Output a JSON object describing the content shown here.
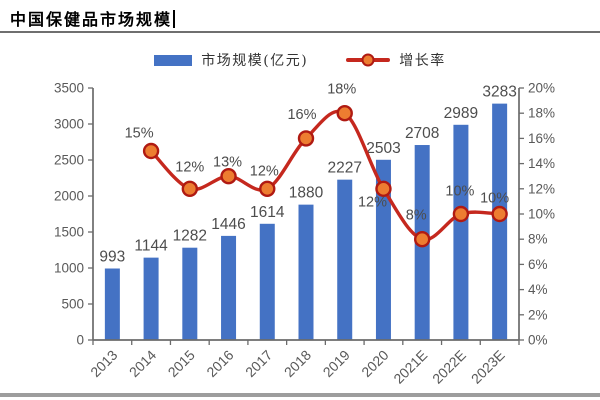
{
  "title": {
    "text": "中国保健品市场规模"
  },
  "legend": {
    "items": [
      {
        "label": "市场规模(亿元)",
        "marker": "bar",
        "color": "#4472C4"
      },
      {
        "label": "增长率",
        "marker": "line",
        "color": "#C5281E",
        "marker_fill": "#ED7D31",
        "marker_stroke": "#B01A12"
      }
    ]
  },
  "chart_data": {
    "type": "bar",
    "subtype": "bar+line combo, dual axis",
    "title": "中国保健品市场规模",
    "categories": [
      "2013",
      "2014",
      "2015",
      "2016",
      "2017",
      "2018",
      "2019",
      "2020",
      "2021E",
      "2022E",
      "2023E"
    ],
    "series": [
      {
        "name": "市场规模(亿元)",
        "type": "bar",
        "axis": "left",
        "color": "#4472C4",
        "values": [
          993,
          1144,
          1282,
          1446,
          1614,
          1880,
          2227,
          2503,
          2708,
          2989,
          3283
        ],
        "value_labels": [
          "993",
          "1144",
          "1282",
          "1446",
          "1614",
          "1880",
          "2227",
          "2503",
          "2708",
          "2989",
          "3283"
        ]
      },
      {
        "name": "增长率",
        "type": "line",
        "axis": "right",
        "color": "#C5281E",
        "marker_fill": "#ED7D31",
        "marker_stroke": "#B01A12",
        "smooth": true,
        "values": [
          null,
          15,
          12,
          13,
          12,
          16,
          18,
          12,
          8,
          10,
          10
        ],
        "value_labels": [
          null,
          "15%",
          "12%",
          "13%",
          "12%",
          "16%",
          "18%",
          "12%",
          "8%",
          "10%",
          "10%"
        ],
        "label_offsets": [
          null,
          [
            -12,
            -18
          ],
          [
            0,
            -22
          ],
          [
            -1,
            -14
          ],
          [
            -3,
            -18
          ],
          [
            -4,
            -24
          ],
          [
            -3,
            -24
          ],
          [
            -11,
            13
          ],
          [
            -6,
            -24
          ],
          [
            -1,
            -23
          ],
          [
            -5,
            -16
          ]
        ]
      }
    ],
    "left_axis": {
      "min": 0,
      "max": 3500,
      "step": 500,
      "ticks": [
        "0",
        "500",
        "1000",
        "1500",
        "2000",
        "2500",
        "3000",
        "3500"
      ]
    },
    "right_axis": {
      "min": 0,
      "max": 20,
      "step": 2,
      "format": "percent",
      "ticks": [
        "0%",
        "2%",
        "4%",
        "6%",
        "8%",
        "10%",
        "12%",
        "14%",
        "16%",
        "18%",
        "20%"
      ]
    },
    "grid": false,
    "legend_position": "top",
    "axis_color": "#6b6b6b",
    "tick_label_color": "#595959",
    "data_label_color": "#4d4d4d"
  }
}
